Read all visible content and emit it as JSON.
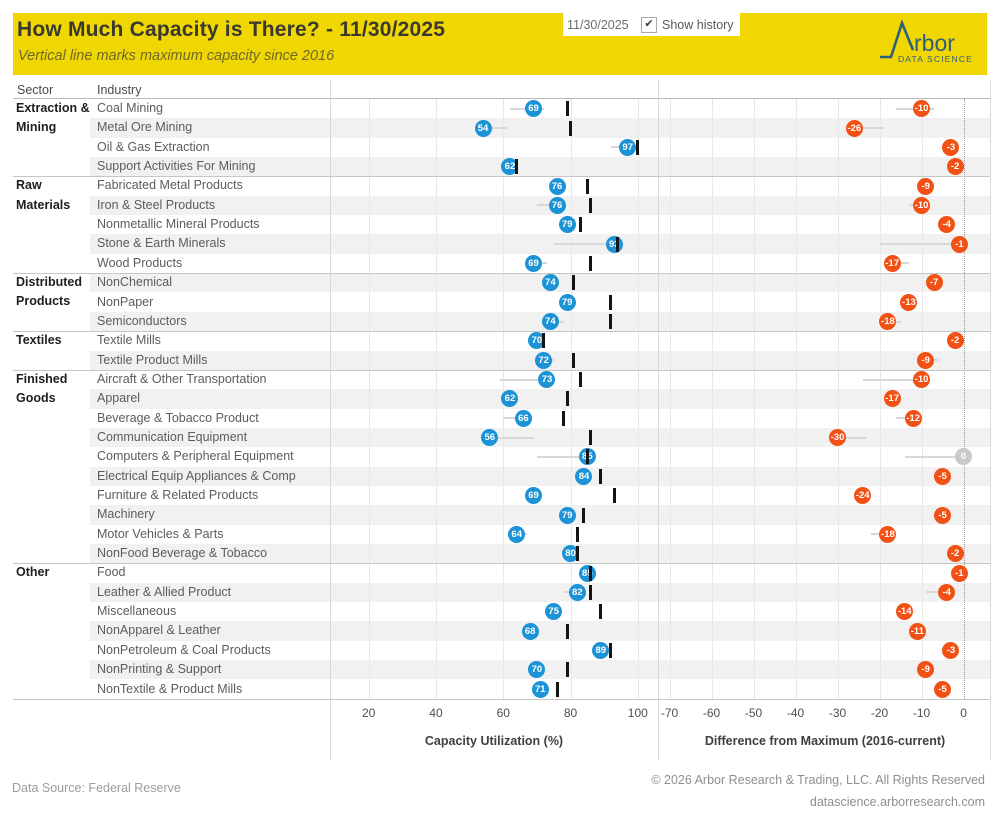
{
  "header": {
    "title": "How Much Capacity is There? - 11/30/2025",
    "subtitle": "Vertical line marks maximum capacity since 2016",
    "date_value": "11/30/2025",
    "show_history_label": "Show history",
    "check_glyph": "✔",
    "band_color": "#F0D602"
  },
  "logo": {
    "wordmark": "rbor",
    "tagline": "DATA SCIENCE",
    "color": "#2E607A"
  },
  "table": {
    "sector_header": "Sector",
    "industry_header": "Industry"
  },
  "chart_data": {
    "type": "scatter",
    "description": "Dual-panel dot plot; left panel current capacity utilization with black vertical tick at maximum since 2016 and gray history line; right panel difference from maximum.",
    "colors": {
      "utilization_dot": "#1B93D6",
      "difference_dot": "#F25115",
      "zero_difference_dot": "#C9C9C9",
      "max_tick": "#141414",
      "history_line": "#D8D8D8"
    },
    "panels": [
      {
        "title": "Capacity Utilization (%)",
        "ticks": [
          20,
          40,
          60,
          80,
          100
        ],
        "domain": [
          8.5,
          106.0
        ],
        "zero_line": false
      },
      {
        "title": "Difference from Maximum (2016-current)",
        "ticks": [
          -70,
          -60,
          -50,
          -40,
          -30,
          -20,
          -10,
          0
        ],
        "domain": [
          -72.5,
          6.3
        ],
        "zero_line": true
      }
    ],
    "rows": [
      {
        "sector": "Extraction & Mining",
        "industry": "Coal Mining",
        "utilization": 69,
        "difference": -10,
        "max_capacity": 79,
        "util_history": [
          62,
          72
        ],
        "diff_history": [
          -16,
          -7
        ]
      },
      {
        "sector": "Extraction & Mining",
        "industry": "Metal Ore Mining",
        "utilization": 54,
        "difference": -26,
        "max_capacity": 80,
        "util_history": [
          52,
          61
        ],
        "diff_history": [
          -26,
          -19
        ]
      },
      {
        "sector": "Extraction & Mining",
        "industry": "Oil & Gas Extraction",
        "utilization": 97,
        "difference": -3,
        "max_capacity": 100,
        "util_history": [
          92,
          97
        ],
        "diff_history": [
          -5,
          -2
        ]
      },
      {
        "sector": "Extraction & Mining",
        "industry": "Support Activities For Mining",
        "utilization": 62,
        "difference": -2,
        "max_capacity": 64,
        "util_history": [
          61,
          63
        ],
        "diff_history": [
          -3,
          -1
        ]
      },
      {
        "sector": "Raw Materials",
        "industry": "Fabricated Metal Products",
        "utilization": 76,
        "difference": -9,
        "max_capacity": 85,
        "util_history": [
          75,
          78
        ],
        "diff_history": [
          -10,
          -8
        ]
      },
      {
        "sector": "Raw Materials",
        "industry": "Iron & Steel Products",
        "utilization": 76,
        "difference": -10,
        "max_capacity": 86,
        "util_history": [
          70,
          76
        ],
        "diff_history": [
          -13,
          -10
        ]
      },
      {
        "sector": "Raw Materials",
        "industry": "Nonmetallic Mineral Products",
        "utilization": 79,
        "difference": -4,
        "max_capacity": 83,
        "util_history": [
          79,
          80
        ],
        "diff_history": [
          -5,
          -4
        ]
      },
      {
        "sector": "Raw Materials",
        "industry": "Stone & Earth Minerals",
        "utilization": 93,
        "difference": -1,
        "max_capacity": 94,
        "util_history": [
          75,
          93
        ],
        "diff_history": [
          -20,
          -1
        ]
      },
      {
        "sector": "Raw Materials",
        "industry": "Wood Products",
        "utilization": 69,
        "difference": -17,
        "max_capacity": 86,
        "util_history": [
          69,
          73
        ],
        "diff_history": [
          -17,
          -13
        ]
      },
      {
        "sector": "Distributed Products",
        "industry": "NonChemical",
        "utilization": 74,
        "difference": -7,
        "max_capacity": 81,
        "util_history": [
          73,
          75
        ],
        "diff_history": [
          -8,
          -6
        ]
      },
      {
        "sector": "Distributed Products",
        "industry": "NonPaper",
        "utilization": 79,
        "difference": -13,
        "max_capacity": 92,
        "util_history": [
          78,
          80
        ],
        "diff_history": [
          -14,
          -12
        ]
      },
      {
        "sector": "Distributed Products",
        "industry": "Semiconductors",
        "utilization": 74,
        "difference": -18,
        "max_capacity": 92,
        "util_history": [
          74,
          78
        ],
        "diff_history": [
          -18,
          -15
        ]
      },
      {
        "sector": "Textiles",
        "industry": "Textile Mills",
        "utilization": 70,
        "difference": -2,
        "max_capacity": 72,
        "util_history": [
          69,
          71
        ],
        "diff_history": [
          -3,
          -2
        ]
      },
      {
        "sector": "Textiles",
        "industry": "Textile Product Mills",
        "utilization": 72,
        "difference": -9,
        "max_capacity": 81,
        "util_history": [
          72,
          75
        ],
        "diff_history": [
          -9,
          -6
        ]
      },
      {
        "sector": "Finished Goods",
        "industry": "Aircraft & Other Transportation",
        "utilization": 73,
        "difference": -10,
        "max_capacity": 83,
        "util_history": [
          59,
          73
        ],
        "diff_history": [
          -24,
          -10
        ]
      },
      {
        "sector": "Finished Goods",
        "industry": "Apparel",
        "utilization": 62,
        "difference": -17,
        "max_capacity": 79,
        "util_history": [
          61,
          63
        ],
        "diff_history": [
          -18,
          -16
        ]
      },
      {
        "sector": "Finished Goods",
        "industry": "Beverage & Tobacco Product",
        "utilization": 66,
        "difference": -12,
        "max_capacity": 78,
        "util_history": [
          60,
          66
        ],
        "diff_history": [
          -16,
          -12
        ]
      },
      {
        "sector": "Finished Goods",
        "industry": "Communication Equipment",
        "utilization": 56,
        "difference": -30,
        "max_capacity": 86,
        "util_history": [
          56,
          69
        ],
        "diff_history": [
          -30,
          -23
        ]
      },
      {
        "sector": "Finished Goods",
        "industry": "Computers & Peripheral Equipment",
        "utilization": 85,
        "difference": 0,
        "max_capacity": 85,
        "util_history": [
          70,
          85
        ],
        "diff_history": [
          -14,
          0
        ]
      },
      {
        "sector": "Finished Goods",
        "industry": "Electrical Equip Appliances & Comp",
        "utilization": 84,
        "difference": -5,
        "max_capacity": 89,
        "util_history": [
          83,
          85
        ],
        "diff_history": [
          -6,
          -4
        ]
      },
      {
        "sector": "Finished Goods",
        "industry": "Furniture & Related Products",
        "utilization": 69,
        "difference": -24,
        "max_capacity": 93,
        "util_history": [
          68,
          70
        ],
        "diff_history": [
          -24,
          -23
        ]
      },
      {
        "sector": "Finished Goods",
        "industry": "Machinery",
        "utilization": 79,
        "difference": -5,
        "max_capacity": 84,
        "util_history": [
          79,
          81
        ],
        "diff_history": [
          -6,
          -5
        ]
      },
      {
        "sector": "Finished Goods",
        "industry": "Motor Vehicles & Parts",
        "utilization": 64,
        "difference": -18,
        "max_capacity": 82,
        "util_history": [
          64,
          67
        ],
        "diff_history": [
          -22,
          -18
        ]
      },
      {
        "sector": "Finished Goods",
        "industry": "NonFood Beverage & Tobacco",
        "utilization": 80,
        "difference": -2,
        "max_capacity": 82,
        "util_history": [
          79,
          81
        ],
        "diff_history": [
          -3,
          -2
        ]
      },
      {
        "sector": "Other",
        "industry": "Food",
        "utilization": 85,
        "difference": -1,
        "max_capacity": 86,
        "util_history": [
          83,
          86
        ],
        "diff_history": [
          -2,
          -1
        ]
      },
      {
        "sector": "Other",
        "industry": "Leather & Allied Product",
        "utilization": 82,
        "difference": -4,
        "max_capacity": 86,
        "util_history": [
          78,
          82
        ],
        "diff_history": [
          -9,
          -4
        ]
      },
      {
        "sector": "Other",
        "industry": "Miscellaneous",
        "utilization": 75,
        "difference": -14,
        "max_capacity": 89,
        "util_history": [
          75,
          77
        ],
        "diff_history": [
          -15,
          -13
        ]
      },
      {
        "sector": "Other",
        "industry": "NonApparel & Leather",
        "utilization": 68,
        "difference": -11,
        "max_capacity": 79,
        "util_history": [
          67,
          69
        ],
        "diff_history": [
          -12,
          -10
        ]
      },
      {
        "sector": "Other",
        "industry": "NonPetroleum & Coal Products",
        "utilization": 89,
        "difference": -3,
        "max_capacity": 92,
        "util_history": [
          88,
          90
        ],
        "diff_history": [
          -4,
          -3
        ]
      },
      {
        "sector": "Other",
        "industry": "NonPrinting & Support",
        "utilization": 70,
        "difference": -9,
        "max_capacity": 79,
        "util_history": [
          70,
          72
        ],
        "diff_history": [
          -10,
          -8
        ]
      },
      {
        "sector": "Other",
        "industry": "NonTextile & Product Mills",
        "utilization": 71,
        "difference": -5,
        "max_capacity": 76,
        "util_history": [
          70,
          72
        ],
        "diff_history": [
          -6,
          -5
        ]
      }
    ]
  },
  "footer": {
    "source": "Data Source: Federal Reserve",
    "copyright": "© 2026 Arbor Research & Trading, LLC. All Rights Reserved",
    "website": "datascience.arborresearch.com"
  }
}
